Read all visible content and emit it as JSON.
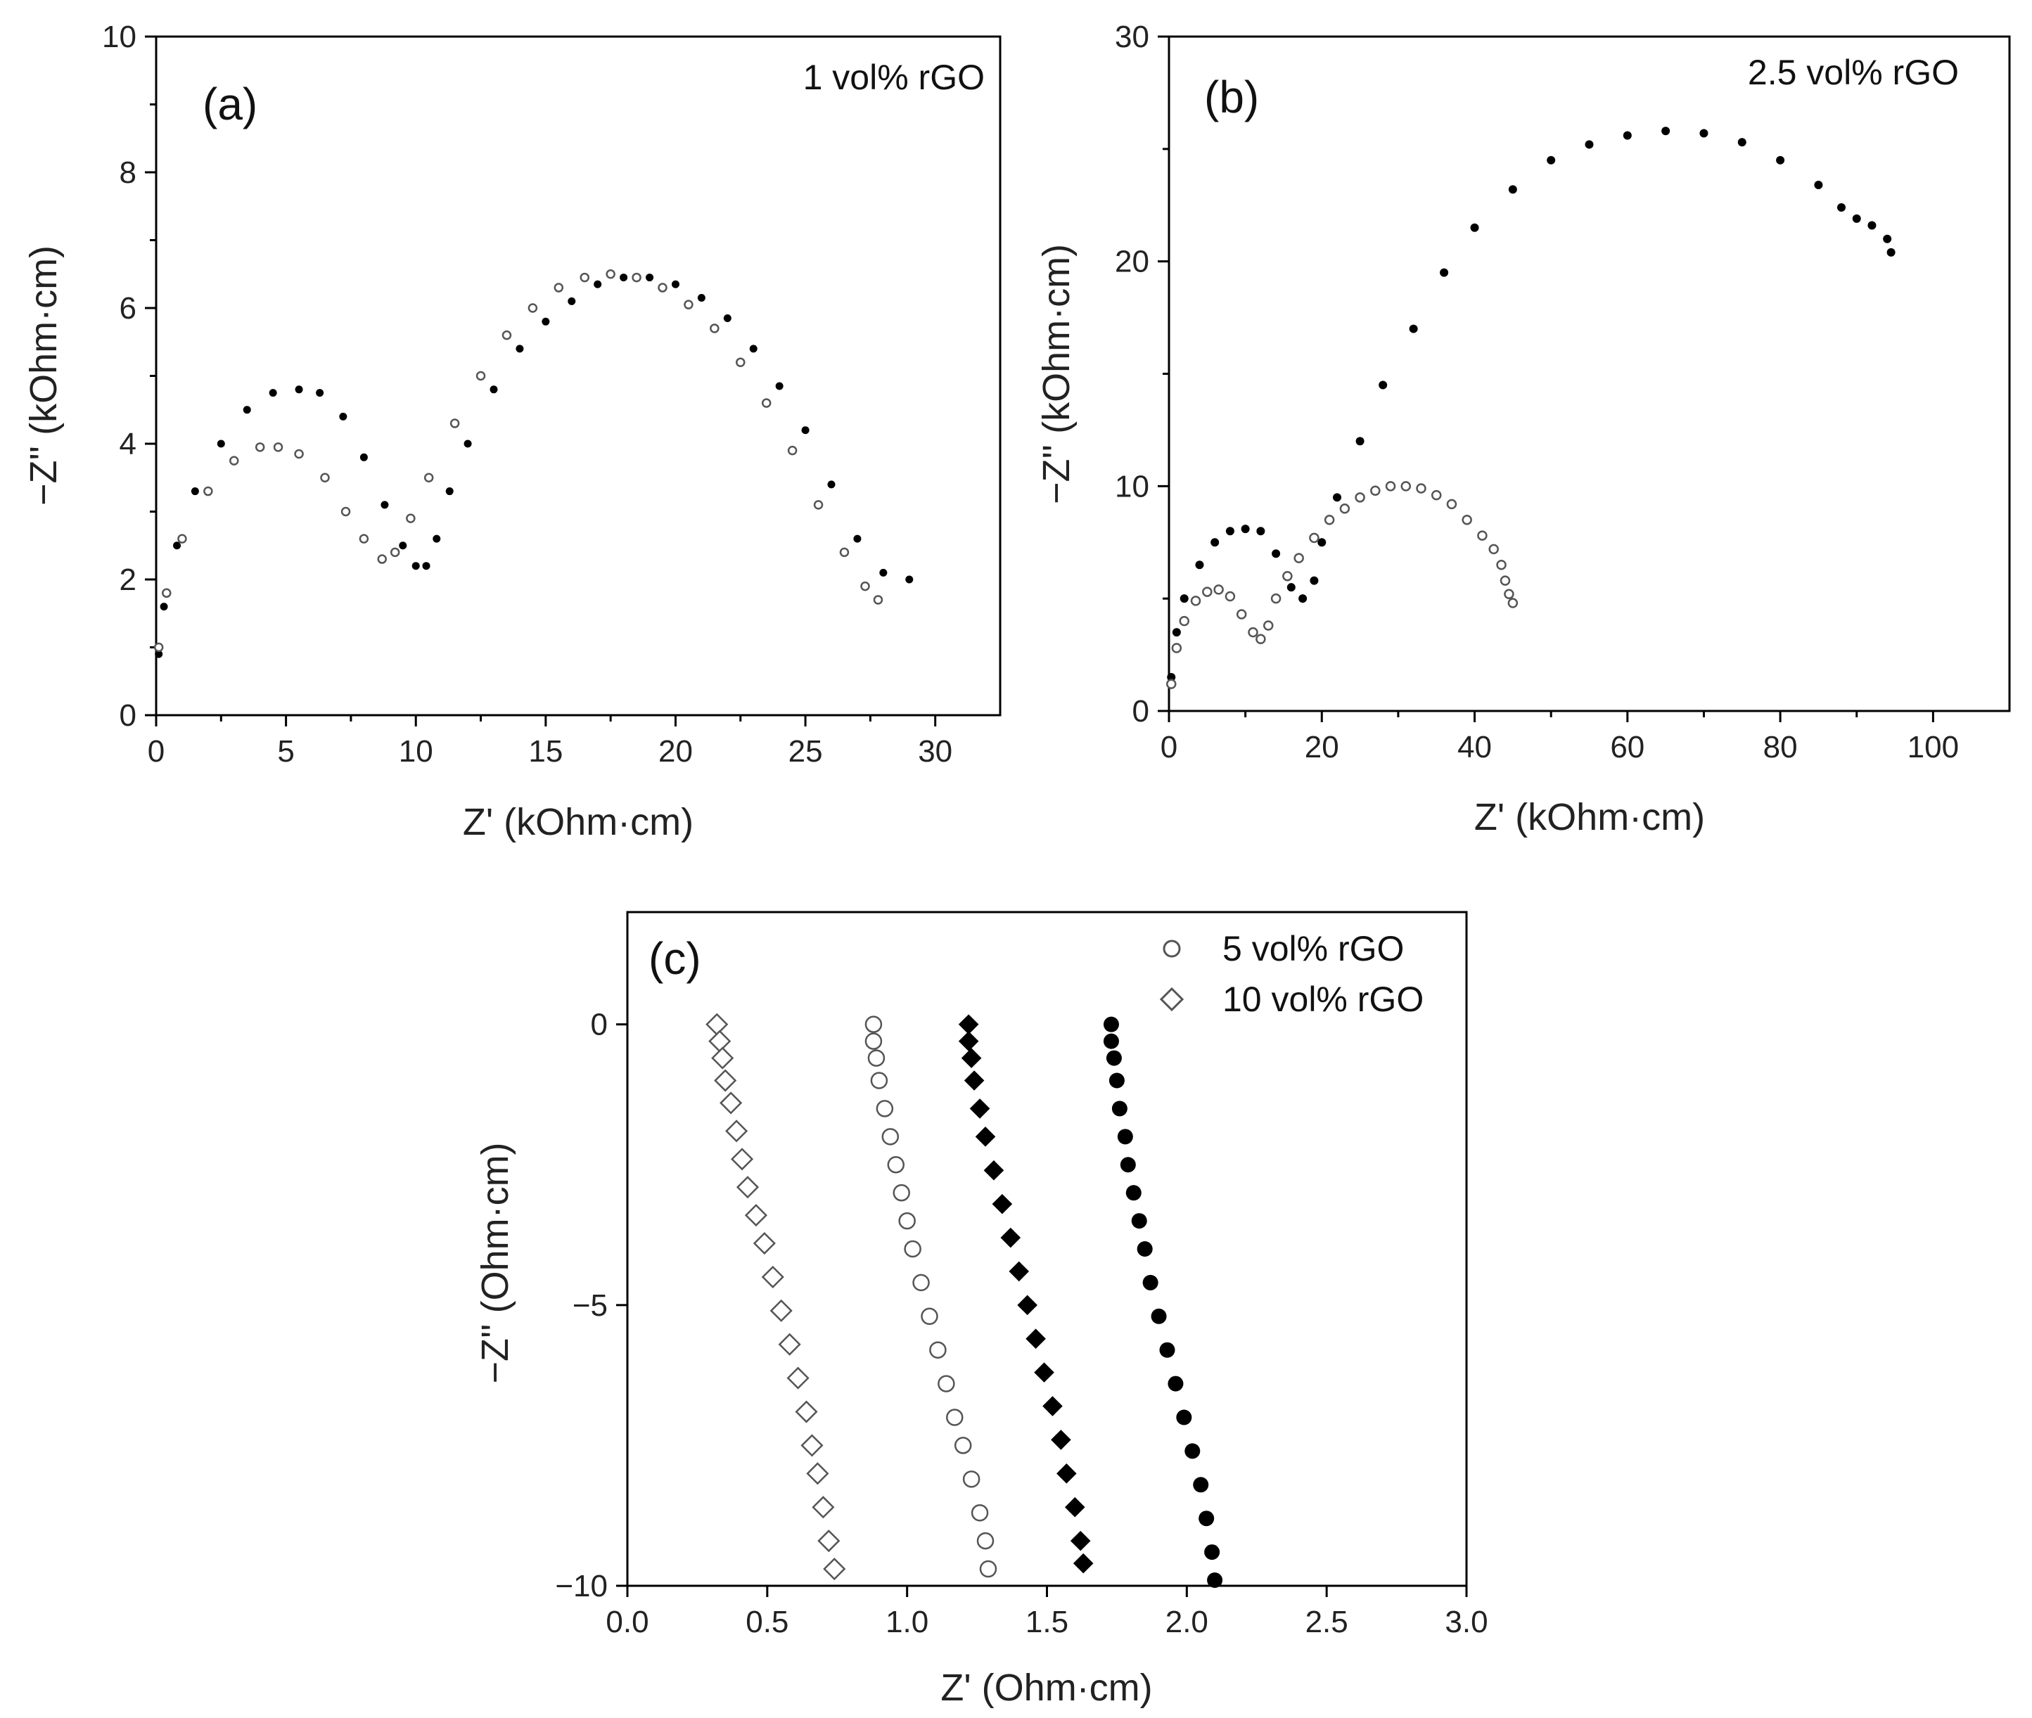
{
  "colors": {
    "filled": "#000000",
    "open_stroke": "#555555",
    "axis": "#000000"
  },
  "chart_data": [
    {
      "panel": "(a)",
      "type": "scatter",
      "annotation": "1 vol% rGO",
      "xlabel": "Z' (kOhm·cm)",
      "ylabel": "−Z'' (kOhm·cm)",
      "xlim": [
        0,
        32.5
      ],
      "ylim": [
        0,
        10
      ],
      "xticks": [
        0,
        5,
        10,
        15,
        20,
        25,
        30
      ],
      "yticks": [
        0,
        2,
        4,
        6,
        8,
        10
      ],
      "series": [
        {
          "name": "filled",
          "marker": "circle-filled",
          "points": [
            [
              0.1,
              0.9
            ],
            [
              0.3,
              1.6
            ],
            [
              0.8,
              2.5
            ],
            [
              1.5,
              3.3
            ],
            [
              2.5,
              4.0
            ],
            [
              3.5,
              4.5
            ],
            [
              4.5,
              4.75
            ],
            [
              5.5,
              4.8
            ],
            [
              6.3,
              4.75
            ],
            [
              7.2,
              4.4
            ],
            [
              8.0,
              3.8
            ],
            [
              8.8,
              3.1
            ],
            [
              9.5,
              2.5
            ],
            [
              10.0,
              2.2
            ],
            [
              10.4,
              2.2
            ],
            [
              10.8,
              2.6
            ],
            [
              11.3,
              3.3
            ],
            [
              12.0,
              4.0
            ],
            [
              13.0,
              4.8
            ],
            [
              14.0,
              5.4
            ],
            [
              15.0,
              5.8
            ],
            [
              16.0,
              6.1
            ],
            [
              17.0,
              6.35
            ],
            [
              18.0,
              6.45
            ],
            [
              19.0,
              6.45
            ],
            [
              20.0,
              6.35
            ],
            [
              21.0,
              6.15
            ],
            [
              22.0,
              5.85
            ],
            [
              23.0,
              5.4
            ],
            [
              24.0,
              4.85
            ],
            [
              25.0,
              4.2
            ],
            [
              26.0,
              3.4
            ],
            [
              27.0,
              2.6
            ],
            [
              28.0,
              2.1
            ],
            [
              29.0,
              2.0
            ]
          ]
        },
        {
          "name": "open",
          "marker": "circle-open",
          "points": [
            [
              0.1,
              1.0
            ],
            [
              0.4,
              1.8
            ],
            [
              1.0,
              2.6
            ],
            [
              2.0,
              3.3
            ],
            [
              3.0,
              3.75
            ],
            [
              4.0,
              3.95
            ],
            [
              4.7,
              3.95
            ],
            [
              5.5,
              3.85
            ],
            [
              6.5,
              3.5
            ],
            [
              7.3,
              3.0
            ],
            [
              8.0,
              2.6
            ],
            [
              8.7,
              2.3
            ],
            [
              9.2,
              2.4
            ],
            [
              9.8,
              2.9
            ],
            [
              10.5,
              3.5
            ],
            [
              11.5,
              4.3
            ],
            [
              12.5,
              5.0
            ],
            [
              13.5,
              5.6
            ],
            [
              14.5,
              6.0
            ],
            [
              15.5,
              6.3
            ],
            [
              16.5,
              6.45
            ],
            [
              17.5,
              6.5
            ],
            [
              18.5,
              6.45
            ],
            [
              19.5,
              6.3
            ],
            [
              20.5,
              6.05
            ],
            [
              21.5,
              5.7
            ],
            [
              22.5,
              5.2
            ],
            [
              23.5,
              4.6
            ],
            [
              24.5,
              3.9
            ],
            [
              25.5,
              3.1
            ],
            [
              26.5,
              2.4
            ],
            [
              27.3,
              1.9
            ],
            [
              27.8,
              1.7
            ]
          ]
        }
      ]
    },
    {
      "panel": "(b)",
      "type": "scatter",
      "annotation": "2.5 vol% rGO",
      "xlabel": "Z' (kOhm·cm)",
      "ylabel": "−Z'' (kOhm·cm)",
      "xlim": [
        0,
        110
      ],
      "ylim": [
        0,
        30
      ],
      "xticks": [
        0,
        20,
        40,
        60,
        80,
        100
      ],
      "yticks": [
        0,
        10,
        20,
        30
      ],
      "series": [
        {
          "name": "filled",
          "marker": "circle-filled",
          "points": [
            [
              0.3,
              1.5
            ],
            [
              1,
              3.5
            ],
            [
              2,
              5.0
            ],
            [
              4,
              6.5
            ],
            [
              6,
              7.5
            ],
            [
              8,
              8.0
            ],
            [
              10,
              8.1
            ],
            [
              12,
              8.0
            ],
            [
              14,
              7.0
            ],
            [
              16,
              5.5
            ],
            [
              17.5,
              5.0
            ],
            [
              19,
              5.8
            ],
            [
              20,
              7.5
            ],
            [
              22,
              9.5
            ],
            [
              25,
              12.0
            ],
            [
              28,
              14.5
            ],
            [
              32,
              17.0
            ],
            [
              36,
              19.5
            ],
            [
              40,
              21.5
            ],
            [
              45,
              23.2
            ],
            [
              50,
              24.5
            ],
            [
              55,
              25.2
            ],
            [
              60,
              25.6
            ],
            [
              65,
              25.8
            ],
            [
              70,
              25.7
            ],
            [
              75,
              25.3
            ],
            [
              80,
              24.5
            ],
            [
              85,
              23.4
            ],
            [
              88,
              22.4
            ],
            [
              90,
              21.9
            ],
            [
              92,
              21.6
            ],
            [
              94,
              21.0
            ],
            [
              94.5,
              20.4
            ]
          ]
        },
        {
          "name": "open",
          "marker": "circle-open",
          "points": [
            [
              0.3,
              1.2
            ],
            [
              1,
              2.8
            ],
            [
              2,
              4.0
            ],
            [
              3.5,
              4.9
            ],
            [
              5,
              5.3
            ],
            [
              6.5,
              5.4
            ],
            [
              8,
              5.1
            ],
            [
              9.5,
              4.3
            ],
            [
              11,
              3.5
            ],
            [
              12,
              3.2
            ],
            [
              13,
              3.8
            ],
            [
              14,
              5.0
            ],
            [
              15.5,
              6.0
            ],
            [
              17,
              6.8
            ],
            [
              19,
              7.7
            ],
            [
              21,
              8.5
            ],
            [
              23,
              9.0
            ],
            [
              25,
              9.5
            ],
            [
              27,
              9.8
            ],
            [
              29,
              10.0
            ],
            [
              31,
              10.0
            ],
            [
              33,
              9.9
            ],
            [
              35,
              9.6
            ],
            [
              37,
              9.2
            ],
            [
              39,
              8.5
            ],
            [
              41,
              7.8
            ],
            [
              42.5,
              7.2
            ],
            [
              43.5,
              6.5
            ],
            [
              44,
              5.8
            ],
            [
              44.5,
              5.2
            ],
            [
              45,
              4.8
            ]
          ]
        }
      ]
    },
    {
      "panel": "(c)",
      "type": "scatter",
      "xlabel": "Z' (Ohm·cm)",
      "ylabel": "−Z'' (Ohm·cm)",
      "xlim": [
        0.0,
        3.0
      ],
      "ylim": [
        -10,
        2
      ],
      "xticks": [
        "0.0",
        "0.5",
        "1.0",
        "1.5",
        "2.0",
        "2.5",
        "3.0"
      ],
      "yticks": [
        "0",
        "-5",
        "-10"
      ],
      "legend": [
        "5 vol% rGO",
        "10 vol% rGO"
      ],
      "series": [
        {
          "name": "10 vol% rGO (open diamonds)",
          "marker": "diamond-open",
          "points": [
            [
              0.32,
              0
            ],
            [
              0.33,
              -0.3
            ],
            [
              0.34,
              -0.6
            ],
            [
              0.35,
              -1.0
            ],
            [
              0.37,
              -1.4
            ],
            [
              0.39,
              -1.9
            ],
            [
              0.41,
              -2.4
            ],
            [
              0.43,
              -2.9
            ],
            [
              0.46,
              -3.4
            ],
            [
              0.49,
              -3.9
            ],
            [
              0.52,
              -4.5
            ],
            [
              0.55,
              -5.1
            ],
            [
              0.58,
              -5.7
            ],
            [
              0.61,
              -6.3
            ],
            [
              0.64,
              -6.9
            ],
            [
              0.66,
              -7.5
            ],
            [
              0.68,
              -8.0
            ],
            [
              0.7,
              -8.6
            ],
            [
              0.72,
              -9.2
            ],
            [
              0.74,
              -9.7
            ]
          ]
        },
        {
          "name": "5 vol% rGO (open circles)",
          "marker": "circle-open",
          "points": [
            [
              0.88,
              0
            ],
            [
              0.88,
              -0.3
            ],
            [
              0.89,
              -0.6
            ],
            [
              0.9,
              -1.0
            ],
            [
              0.92,
              -1.5
            ],
            [
              0.94,
              -2.0
            ],
            [
              0.96,
              -2.5
            ],
            [
              0.98,
              -3.0
            ],
            [
              1.0,
              -3.5
            ],
            [
              1.02,
              -4.0
            ],
            [
              1.05,
              -4.6
            ],
            [
              1.08,
              -5.2
            ],
            [
              1.11,
              -5.8
            ],
            [
              1.14,
              -6.4
            ],
            [
              1.17,
              -7.0
            ],
            [
              1.2,
              -7.5
            ],
            [
              1.23,
              -8.1
            ],
            [
              1.26,
              -8.7
            ],
            [
              1.28,
              -9.2
            ],
            [
              1.29,
              -9.7
            ]
          ]
        },
        {
          "name": "10 vol% rGO (filled diamonds)",
          "marker": "diamond-filled",
          "points": [
            [
              1.22,
              0
            ],
            [
              1.22,
              -0.3
            ],
            [
              1.23,
              -0.6
            ],
            [
              1.24,
              -1.0
            ],
            [
              1.26,
              -1.5
            ],
            [
              1.28,
              -2.0
            ],
            [
              1.31,
              -2.6
            ],
            [
              1.34,
              -3.2
            ],
            [
              1.37,
              -3.8
            ],
            [
              1.4,
              -4.4
            ],
            [
              1.43,
              -5.0
            ],
            [
              1.46,
              -5.6
            ],
            [
              1.49,
              -6.2
            ],
            [
              1.52,
              -6.8
            ],
            [
              1.55,
              -7.4
            ],
            [
              1.57,
              -8.0
            ],
            [
              1.6,
              -8.6
            ],
            [
              1.62,
              -9.2
            ],
            [
              1.63,
              -9.6
            ]
          ]
        },
        {
          "name": "5 vol% rGO (filled circles)",
          "marker": "circle-filled",
          "points": [
            [
              1.73,
              0
            ],
            [
              1.73,
              -0.3
            ],
            [
              1.74,
              -0.6
            ],
            [
              1.75,
              -1.0
            ],
            [
              1.76,
              -1.5
            ],
            [
              1.78,
              -2.0
            ],
            [
              1.79,
              -2.5
            ],
            [
              1.81,
              -3.0
            ],
            [
              1.83,
              -3.5
            ],
            [
              1.85,
              -4.0
            ],
            [
              1.87,
              -4.6
            ],
            [
              1.9,
              -5.2
            ],
            [
              1.93,
              -5.8
            ],
            [
              1.96,
              -6.4
            ],
            [
              1.99,
              -7.0
            ],
            [
              2.02,
              -7.6
            ],
            [
              2.05,
              -8.2
            ],
            [
              2.07,
              -8.8
            ],
            [
              2.09,
              -9.4
            ],
            [
              2.1,
              -9.9
            ]
          ]
        }
      ]
    }
  ]
}
